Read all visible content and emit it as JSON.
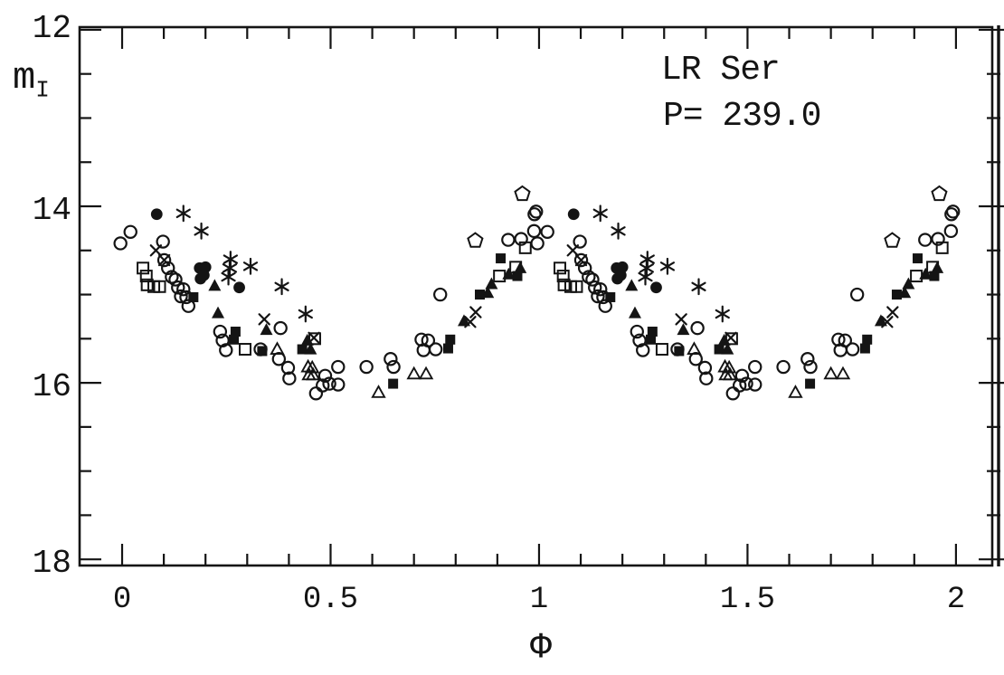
{
  "figure": {
    "title_line1": "LR Ser",
    "title_line2": "P= 239.0",
    "x_axis_label": "Φ",
    "y_axis_label_main": "m",
    "y_axis_label_sub": "I"
  },
  "style": {
    "ink": "#141414",
    "background": "#ffffff"
  },
  "chart_data": {
    "type": "scatter",
    "title": "LR Ser",
    "subtitle": "P= 239.0",
    "xlabel": "Φ",
    "ylabel": "m_I",
    "grid": false,
    "legend": "none",
    "phase_repeat_offset": 1,
    "x_axis": {
      "lim": [
        -0.102,
        2.087
      ],
      "major_ticks": [
        0,
        0.5,
        1,
        1.5,
        2
      ],
      "major_labels": [
        "0",
        "0.5",
        "1",
        "1.5",
        "2"
      ],
      "minor_ticks": [
        0.1,
        0.2,
        0.3,
        0.4,
        0.6,
        0.7,
        0.8,
        0.9,
        1.1,
        1.2,
        1.3,
        1.4,
        1.6,
        1.7,
        1.8,
        1.9
      ]
    },
    "y_axis": {
      "lim": [
        11.97,
        18.07
      ],
      "inverted_magnitude_axis": true,
      "major_ticks": [
        12,
        14,
        16,
        18
      ],
      "major_labels": [
        "12",
        "14",
        "16",
        "18"
      ],
      "minor_ticks": [
        12.5,
        13,
        13.5,
        14.5,
        15,
        15.5,
        16.5,
        17,
        17.5
      ]
    },
    "series": [
      {
        "name": "open-circle-points",
        "marker": "open-circle",
        "points": [
          [
            -0.004,
            14.42
          ],
          [
            0.02,
            14.29
          ],
          [
            0.098,
            14.4
          ],
          [
            0.101,
            14.61
          ],
          [
            0.11,
            14.7
          ],
          [
            0.119,
            14.8
          ],
          [
            0.128,
            14.83
          ],
          [
            0.134,
            14.92
          ],
          [
            0.141,
            15.02
          ],
          [
            0.147,
            14.94
          ],
          [
            0.154,
            15.03
          ],
          [
            0.159,
            15.13
          ],
          [
            0.235,
            15.42
          ],
          [
            0.241,
            15.52
          ],
          [
            0.249,
            15.63
          ],
          [
            0.332,
            15.62
          ],
          [
            0.376,
            15.73
          ],
          [
            0.38,
            15.38
          ],
          [
            0.398,
            15.83
          ],
          [
            0.401,
            15.95
          ],
          [
            0.465,
            16.12
          ],
          [
            0.481,
            16.03
          ],
          [
            0.487,
            15.92
          ],
          [
            0.497,
            16.01
          ],
          [
            0.518,
            15.82
          ],
          [
            0.518,
            16.02
          ],
          [
            0.586,
            15.82
          ],
          [
            0.644,
            15.73
          ],
          [
            0.651,
            15.82
          ],
          [
            0.718,
            15.51
          ],
          [
            0.723,
            15.63
          ],
          [
            0.734,
            15.52
          ],
          [
            0.752,
            15.62
          ],
          [
            0.763,
            15.0
          ],
          [
            0.926,
            14.38
          ],
          [
            0.957,
            14.37
          ],
          [
            0.988,
            14.28
          ],
          [
            0.989,
            14.09
          ],
          [
            0.993,
            14.06
          ]
        ]
      },
      {
        "name": "filled-circle-points",
        "marker": "filled-circle",
        "points": [
          [
            0.083,
            14.09
          ],
          [
            0.186,
            14.7
          ],
          [
            0.2,
            14.69
          ],
          [
            0.188,
            14.82
          ],
          [
            0.196,
            14.78
          ],
          [
            0.281,
            14.92
          ]
        ]
      },
      {
        "name": "asterisk-points",
        "marker": "asterisk",
        "points": [
          [
            0.147,
            14.08
          ],
          [
            0.19,
            14.28
          ],
          [
            0.26,
            14.6
          ],
          [
            0.258,
            14.7
          ],
          [
            0.255,
            14.8
          ],
          [
            0.308,
            14.68
          ],
          [
            0.383,
            14.91
          ],
          [
            0.44,
            15.22
          ]
        ]
      },
      {
        "name": "x-cross-points",
        "marker": "x-cross",
        "points": [
          [
            0.081,
            14.5
          ],
          [
            0.101,
            14.61
          ],
          [
            0.341,
            15.28
          ],
          [
            0.46,
            15.49
          ],
          [
            0.835,
            15.31
          ],
          [
            0.848,
            15.2
          ]
        ]
      },
      {
        "name": "open-square-points",
        "marker": "open-square",
        "points": [
          [
            0.05,
            14.7
          ],
          [
            0.058,
            14.79
          ],
          [
            0.06,
            14.89
          ],
          [
            0.076,
            14.91
          ],
          [
            0.09,
            14.91
          ],
          [
            0.295,
            15.62
          ],
          [
            0.462,
            15.5
          ],
          [
            0.905,
            14.79
          ],
          [
            0.944,
            14.69
          ],
          [
            0.967,
            14.47
          ]
        ]
      },
      {
        "name": "filled-square-points",
        "marker": "filled-square",
        "points": [
          [
            0.171,
            15.03
          ],
          [
            0.268,
            15.51
          ],
          [
            0.272,
            15.42
          ],
          [
            0.336,
            15.64
          ],
          [
            0.432,
            15.62
          ],
          [
            0.65,
            16.01
          ],
          [
            0.782,
            15.61
          ],
          [
            0.787,
            15.51
          ],
          [
            0.858,
            15.0
          ],
          [
            0.908,
            14.59
          ],
          [
            0.948,
            14.79
          ]
        ]
      },
      {
        "name": "filled-triangle-points",
        "marker": "filled-triangle",
        "points": [
          [
            0.222,
            14.9
          ],
          [
            0.23,
            15.21
          ],
          [
            0.346,
            15.4
          ],
          [
            0.444,
            15.52
          ],
          [
            0.452,
            15.62
          ],
          [
            0.82,
            15.3
          ],
          [
            0.877,
            14.98
          ],
          [
            0.886,
            14.88
          ],
          [
            0.927,
            14.77
          ],
          [
            0.955,
            14.7
          ]
        ]
      },
      {
        "name": "open-triangle-points",
        "marker": "open-triangle",
        "points": [
          [
            0.372,
            15.62
          ],
          [
            0.446,
            15.82
          ],
          [
            0.456,
            15.83
          ],
          [
            0.448,
            15.91
          ],
          [
            0.458,
            15.91
          ],
          [
            0.615,
            16.11
          ],
          [
            0.7,
            15.9
          ],
          [
            0.729,
            15.9
          ]
        ]
      },
      {
        "name": "open-pentagon-points",
        "marker": "open-pentagon",
        "points": [
          [
            0.847,
            14.39
          ],
          [
            0.96,
            13.86
          ]
        ]
      }
    ]
  }
}
